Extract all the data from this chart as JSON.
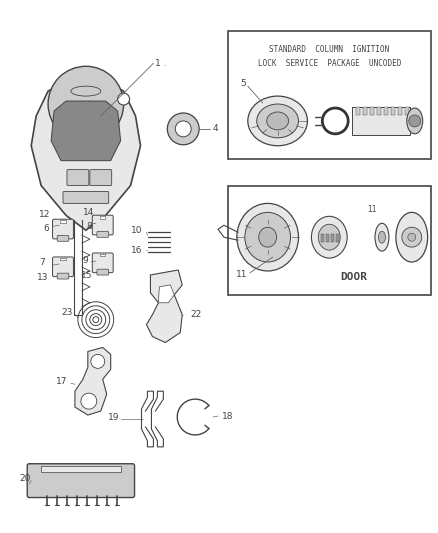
{
  "bg_color": "#ffffff",
  "fig_width": 4.38,
  "fig_height": 5.33,
  "dpi": 100,
  "box1_text_line1": "STANDARD  COLUMN  IGNITION",
  "box1_text_line2": "LOCK  SERVICE  PACKAGE  UNCODED",
  "box2_text": "DOOR",
  "edge_color": "#444444",
  "face_light": "#e8e8e8",
  "face_mid": "#cccccc",
  "face_dark": "#aaaaaa"
}
